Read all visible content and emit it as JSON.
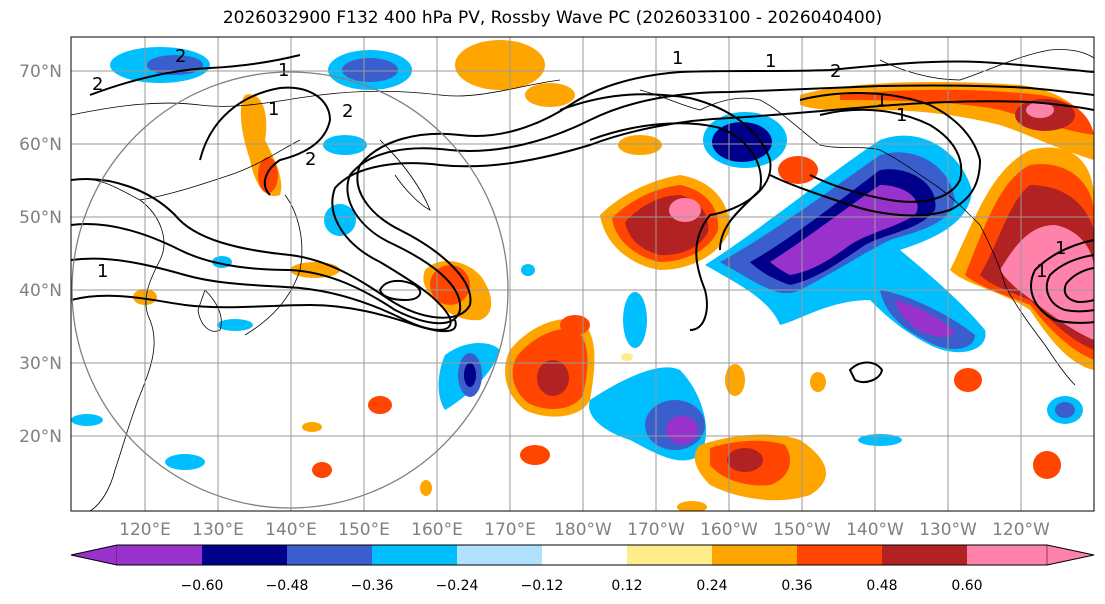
{
  "title": "2026032900 F132 400 hPa PV, Rossby Wave PC (2026033100 - 2026040400)",
  "map": {
    "lat_labels": [
      "70°N",
      "60°N",
      "50°N",
      "40°N",
      "30°N",
      "20°N"
    ],
    "lon_labels": [
      "120°E",
      "130°E",
      "140°E",
      "150°E",
      "160°E",
      "170°E",
      "180°W",
      "170°W",
      "160°W",
      "150°W",
      "140°W",
      "130°W",
      "120°W"
    ],
    "contour_labels": [
      "2",
      "1",
      "2",
      "1",
      "2",
      "2",
      "1",
      "1",
      "2",
      "1",
      "1",
      "1",
      "1",
      "1"
    ]
  },
  "colorbar": {
    "tick_labels": [
      "−0.60",
      "−0.48",
      "−0.36",
      "−0.24",
      "−0.12",
      "0.12",
      "0.24",
      "0.36",
      "0.48",
      "0.60"
    ],
    "colors": [
      "#9932cc",
      "#00008b",
      "#3a5fcd",
      "#00bfff",
      "#b0e2ff",
      "#ffffff",
      "#ffec8b",
      "#ffa500",
      "#ff4500",
      "#b22222",
      "#ff82ab"
    ]
  },
  "colors": {
    "land_outline": "#000000",
    "grid": "#999999",
    "contour": "#000000",
    "circle": "#808080"
  }
}
